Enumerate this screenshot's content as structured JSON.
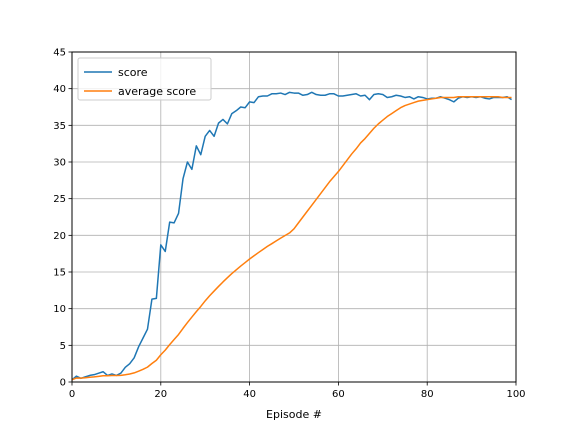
{
  "chart_data": {
    "type": "line",
    "title": "",
    "xlabel": "Episode #",
    "ylabel": "",
    "xlim": [
      0,
      100
    ],
    "ylim": [
      0,
      45
    ],
    "x_ticks": [
      0,
      20,
      40,
      60,
      80,
      100
    ],
    "y_ticks": [
      0,
      5,
      10,
      15,
      20,
      25,
      30,
      35,
      40,
      45
    ],
    "grid": true,
    "legend": {
      "placement": "upper-left",
      "entries": [
        "score",
        "average score"
      ]
    },
    "series": [
      {
        "name": "score",
        "color": "#1f77b4",
        "x": [
          0,
          1,
          2,
          3,
          4,
          5,
          6,
          7,
          8,
          9,
          10,
          11,
          12,
          13,
          14,
          15,
          16,
          17,
          18,
          19,
          20,
          21,
          22,
          23,
          24,
          25,
          26,
          27,
          28,
          29,
          30,
          31,
          32,
          33,
          34,
          35,
          36,
          37,
          38,
          39,
          40,
          41,
          42,
          43,
          44,
          45,
          46,
          47,
          48,
          49,
          50,
          51,
          52,
          53,
          54,
          55,
          56,
          57,
          58,
          59,
          60,
          61,
          62,
          63,
          64,
          65,
          66,
          67,
          68,
          69,
          70,
          71,
          72,
          73,
          74,
          75,
          76,
          77,
          78,
          79,
          80,
          81,
          82,
          83,
          84,
          85,
          86,
          87,
          88,
          89,
          90,
          91,
          92,
          93,
          94,
          95,
          96,
          97,
          98,
          99
        ],
        "values": [
          0.3,
          0.8,
          0.5,
          0.7,
          0.9,
          1.0,
          1.2,
          1.4,
          0.9,
          1.1,
          0.9,
          1.2,
          2.0,
          2.5,
          3.3,
          4.8,
          6.0,
          7.2,
          11.3,
          11.4,
          18.7,
          17.8,
          21.8,
          21.7,
          23.0,
          27.7,
          30.0,
          29.0,
          32.2,
          31.0,
          33.5,
          34.3,
          33.5,
          35.3,
          35.8,
          35.2,
          36.6,
          37.0,
          37.5,
          37.4,
          38.2,
          38.1,
          38.9,
          39.0,
          39.0,
          39.3,
          39.3,
          39.4,
          39.2,
          39.5,
          39.4,
          39.4,
          39.1,
          39.2,
          39.5,
          39.2,
          39.1,
          39.1,
          39.3,
          39.3,
          39.0,
          39.0,
          39.1,
          39.2,
          39.3,
          39.0,
          39.1,
          38.5,
          39.2,
          39.3,
          39.2,
          38.8,
          38.9,
          39.1,
          39.0,
          38.8,
          38.9,
          38.6,
          38.9,
          38.8,
          38.6,
          38.7,
          38.7,
          38.9,
          38.7,
          38.5,
          38.2,
          38.7,
          38.9,
          38.8,
          38.9,
          38.8,
          38.9,
          38.7,
          38.6,
          38.8,
          38.8,
          38.8,
          38.9,
          38.5
        ]
      },
      {
        "name": "average score",
        "color": "#ff7f0e",
        "x": [
          0,
          1,
          2,
          3,
          4,
          5,
          6,
          7,
          8,
          9,
          10,
          11,
          12,
          13,
          14,
          15,
          16,
          17,
          18,
          19,
          20,
          21,
          22,
          23,
          24,
          25,
          26,
          27,
          28,
          29,
          30,
          31,
          32,
          33,
          34,
          35,
          36,
          37,
          38,
          39,
          40,
          41,
          42,
          43,
          44,
          45,
          46,
          47,
          48,
          49,
          50,
          51,
          52,
          53,
          54,
          55,
          56,
          57,
          58,
          59,
          60,
          61,
          62,
          63,
          64,
          65,
          66,
          67,
          68,
          69,
          70,
          71,
          72,
          73,
          74,
          75,
          76,
          77,
          78,
          79,
          80,
          81,
          82,
          83,
          84,
          85,
          86,
          87,
          88,
          89,
          90,
          91,
          92,
          93,
          94,
          95,
          96,
          97,
          98,
          99
        ],
        "values": [
          0.3,
          0.55,
          0.53,
          0.58,
          0.65,
          0.7,
          0.77,
          0.85,
          0.86,
          0.88,
          0.88,
          0.91,
          0.99,
          1.09,
          1.24,
          1.47,
          1.73,
          2.03,
          2.52,
          2.97,
          3.72,
          4.35,
          5.1,
          5.8,
          6.48,
          7.31,
          8.1,
          8.86,
          9.6,
          10.3,
          11.07,
          11.76,
          12.4,
          13.03,
          13.64,
          14.22,
          14.78,
          15.3,
          15.81,
          16.29,
          16.77,
          17.22,
          17.65,
          18.07,
          18.49,
          18.86,
          19.24,
          19.62,
          19.98,
          20.33,
          20.89,
          21.7,
          22.5,
          23.3,
          24.1,
          24.9,
          25.7,
          26.5,
          27.3,
          28.0,
          28.7,
          29.5,
          30.3,
          31.1,
          31.8,
          32.6,
          33.2,
          33.9,
          34.6,
          35.2,
          35.7,
          36.2,
          36.6,
          37.0,
          37.4,
          37.7,
          37.9,
          38.1,
          38.3,
          38.4,
          38.5,
          38.6,
          38.7,
          38.8,
          38.8,
          38.8,
          38.8,
          38.9,
          38.9,
          38.9,
          38.9,
          38.9,
          38.9,
          38.9,
          38.9,
          38.9,
          38.9,
          38.8,
          38.8,
          38.8
        ]
      }
    ]
  }
}
